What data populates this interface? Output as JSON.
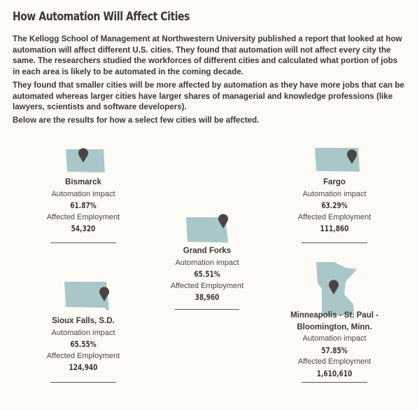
{
  "header": {
    "title": "How Automation Will Affect Cities"
  },
  "paragraphs": [
    "The Kellogg School of Management at Northwestern University published a report that looked at how automation will affect different U.S. cities. They found that automation will not affect every city the same. The researchers studied the workforces of different cities and calculated what portion of jobs in each area is likely to be automated in the coming decade.",
    "They found that smaller cities will be more affected by automation as they have more jobs that can be automated whereas larger cities have larger shares of managerial and knowledge professions (like lawyers, scientists and software developers).",
    "Below are the results for how a select few cities will be affected."
  ],
  "cities": [
    {
      "name": "Bismarck",
      "impact_label": "Automation impact",
      "impact": "61.87%",
      "employment_label": "Affected Employment",
      "employment": "54,320"
    },
    {
      "name": "Fargo",
      "impact_label": "Automation impact",
      "impact": "63.29%",
      "employment_label": "Affected Employment",
      "employment": "111,860"
    },
    {
      "name": "Grand Forks",
      "impact_label": "Automation impact",
      "impact": "65.51%",
      "employment_label": "Affected Employment",
      "employment": "38,960"
    },
    {
      "name": "Sioux Falls, S.D.",
      "impact_label": "Automation impact",
      "impact": "65.55%",
      "employment_label": "Affected Employment",
      "employment": "124,940"
    },
    {
      "name": "Minneapolis - St. Paul - Bloomington, Minn.",
      "impact_label": "Automation impact",
      "impact": "57.85%",
      "employment_label": "Affected Employment",
      "employment": "1,610,610"
    }
  ]
}
